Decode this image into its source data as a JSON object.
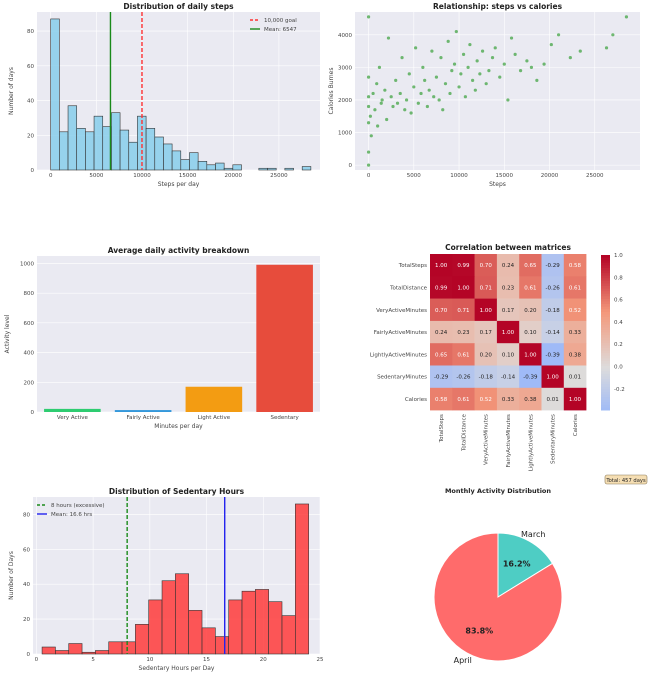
{
  "chart_data": [
    {
      "type": "bar",
      "subtype": "histogram",
      "title": "Distribution of daily steps",
      "xlabel": "Steps per day",
      "ylabel": "Number of days",
      "bin_start": 0,
      "bin_width": 950,
      "counts": [
        87,
        22,
        37,
        24,
        22,
        31,
        25,
        33,
        23,
        16,
        31,
        24,
        19,
        15,
        11,
        6,
        10,
        5,
        3,
        4,
        1,
        3,
        0,
        0,
        1,
        1,
        0,
        1,
        0,
        2
      ],
      "xlim": [
        -1500,
        29500
      ],
      "ylim": [
        0,
        91
      ],
      "xticks": [
        0,
        5000,
        10000,
        15000,
        20000,
        25000
      ],
      "yticks": [
        0,
        20,
        40,
        60,
        80
      ],
      "lines": [
        {
          "label": "10,000 goal",
          "x": 10000,
          "color": "#ff3333",
          "style": "dashed"
        },
        {
          "label": "Mean: 6547",
          "x": 6547,
          "color": "#1a8a1a",
          "style": "solid"
        }
      ],
      "bar_color": "#87ceeb",
      "legend": "top-right",
      "grid": true
    },
    {
      "type": "scatter",
      "title": "Relationship: steps vs calories",
      "xlabel": "Steps",
      "ylabel": "Calories Burnes",
      "xlim": [
        -1500,
        30000
      ],
      "ylim": [
        -150,
        4700
      ],
      "xticks": [
        0,
        5000,
        10000,
        15000,
        20000,
        25000
      ],
      "yticks": [
        0,
        1000,
        2000,
        3000,
        4000
      ],
      "color": "#2a9a2a",
      "points": [
        [
          0,
          0
        ],
        [
          0,
          400
        ],
        [
          0,
          1300
        ],
        [
          0,
          1800
        ],
        [
          0,
          2100
        ],
        [
          0,
          2700
        ],
        [
          0,
          4550
        ],
        [
          200,
          1500
        ],
        [
          300,
          900
        ],
        [
          500,
          2200
        ],
        [
          700,
          1700
        ],
        [
          900,
          2500
        ],
        [
          1000,
          1200
        ],
        [
          1200,
          3000
        ],
        [
          1400,
          1900
        ],
        [
          1500,
          2000
        ],
        [
          1800,
          2300
        ],
        [
          2000,
          1400
        ],
        [
          2200,
          3900
        ],
        [
          2500,
          2100
        ],
        [
          2700,
          1800
        ],
        [
          3000,
          2600
        ],
        [
          3200,
          1900
        ],
        [
          3500,
          2200
        ],
        [
          3700,
          3300
        ],
        [
          4000,
          1700
        ],
        [
          4200,
          2000
        ],
        [
          4500,
          2800
        ],
        [
          4700,
          1600
        ],
        [
          5000,
          2400
        ],
        [
          5200,
          3600
        ],
        [
          5500,
          1900
        ],
        [
          5800,
          2200
        ],
        [
          6000,
          3000
        ],
        [
          6200,
          2600
        ],
        [
          6500,
          1800
        ],
        [
          6700,
          2300
        ],
        [
          7000,
          3500
        ],
        [
          7200,
          2100
        ],
        [
          7500,
          2700
        ],
        [
          7800,
          2000
        ],
        [
          8000,
          3300
        ],
        [
          8200,
          1700
        ],
        [
          8500,
          2500
        ],
        [
          8800,
          3800
        ],
        [
          9000,
          2200
        ],
        [
          9200,
          2900
        ],
        [
          9500,
          3100
        ],
        [
          9700,
          4100
        ],
        [
          10000,
          2400
        ],
        [
          10200,
          2800
        ],
        [
          10500,
          3400
        ],
        [
          10700,
          2100
        ],
        [
          11000,
          3000
        ],
        [
          11200,
          3700
        ],
        [
          11500,
          2600
        ],
        [
          11800,
          2300
        ],
        [
          12000,
          3200
        ],
        [
          12300,
          2800
        ],
        [
          12600,
          3500
        ],
        [
          13000,
          2500
        ],
        [
          13300,
          2900
        ],
        [
          13700,
          3300
        ],
        [
          14000,
          3600
        ],
        [
          14500,
          2700
        ],
        [
          15000,
          3100
        ],
        [
          15400,
          2000
        ],
        [
          15800,
          3900
        ],
        [
          16200,
          3400
        ],
        [
          16800,
          2900
        ],
        [
          17500,
          3200
        ],
        [
          18000,
          3000
        ],
        [
          18600,
          2600
        ],
        [
          19400,
          3100
        ],
        [
          20200,
          3700
        ],
        [
          21000,
          4000
        ],
        [
          22300,
          3300
        ],
        [
          23400,
          3500
        ],
        [
          26300,
          3600
        ],
        [
          27000,
          4000
        ],
        [
          28500,
          4550
        ]
      ]
    },
    {
      "type": "bar",
      "title": "Average daily activity breakdown",
      "xlabel": "Minutes per day",
      "ylabel": "Activity level",
      "categories": [
        "Very Active",
        "Fairly Active",
        "Light Active",
        "Sedentary"
      ],
      "values": [
        21,
        13,
        170,
        991
      ],
      "colors": [
        "#2ecc71",
        "#3498db",
        "#f39c12",
        "#e74c3c"
      ],
      "ylim": [
        0,
        1050
      ],
      "yticks": [
        0,
        200,
        400,
        600,
        800,
        1000
      ],
      "grid": true
    },
    {
      "type": "heatmap",
      "title": "Correlation between matrices",
      "labels": [
        "TotalSteps",
        "TotalDistance",
        "VeryActiveMinutes",
        "FairlyActiveMinutes",
        "LightlyActiveMinutes",
        "SedentaryMinutes",
        "Calories"
      ],
      "matrix": [
        [
          1.0,
          0.99,
          0.7,
          0.24,
          0.65,
          -0.29,
          0.58
        ],
        [
          0.99,
          1.0,
          0.71,
          0.23,
          0.61,
          -0.26,
          0.61
        ],
        [
          0.7,
          0.71,
          1.0,
          0.17,
          0.2,
          -0.18,
          0.52
        ],
        [
          0.24,
          0.23,
          0.17,
          1.0,
          0.1,
          -0.14,
          0.33
        ],
        [
          0.65,
          0.61,
          0.2,
          0.1,
          1.0,
          -0.39,
          0.38
        ],
        [
          -0.29,
          -0.26,
          -0.18,
          -0.14,
          -0.39,
          1.0,
          0.01
        ],
        [
          0.58,
          0.61,
          0.52,
          0.33,
          0.38,
          0.01,
          1.0
        ]
      ],
      "colorbar_range": [
        -0.39,
        1.0
      ],
      "colorbar_ticks": [
        "1.0",
        "0.8",
        "0.6",
        "0.4",
        "0.2",
        "0.0",
        "-0.2"
      ],
      "colormap": "coolwarm"
    },
    {
      "type": "bar",
      "subtype": "histogram",
      "title": "Distribution of Sedentary Hours",
      "xlabel": "Sedentary Hours per Day",
      "ylabel": "Number of Days",
      "bin_start": 0.5,
      "bin_width": 1.175,
      "counts": [
        4,
        2,
        6,
        1,
        2,
        7,
        7,
        17,
        31,
        42,
        46,
        25,
        15,
        10,
        31,
        36,
        37,
        30,
        22,
        86
      ],
      "xlim": [
        -0.3,
        25
      ],
      "ylim": [
        0,
        90
      ],
      "xticks": [
        0,
        5,
        10,
        15,
        20,
        25
      ],
      "yticks": [
        0,
        20,
        40,
        60,
        80
      ],
      "lines": [
        {
          "label": "8 hours (excessive)",
          "x": 8,
          "color": "#1a8a1a",
          "style": "dashed"
        },
        {
          "label": "Mean: 16.6 hrs",
          "x": 16.6,
          "color": "#2222ee",
          "style": "solid"
        }
      ],
      "bar_color": "#ff3b3b",
      "legend": "top-left",
      "grid": true
    },
    {
      "type": "pie",
      "title": "Monthly Activity Distribution",
      "labels": [
        "March",
        "April"
      ],
      "values": [
        16.2,
        83.8
      ],
      "value_labels": [
        "16.2%",
        "83.8%"
      ],
      "colors": [
        "#4ecdc4",
        "#ff6b6b"
      ],
      "annotation": "Total: 457 days"
    }
  ]
}
